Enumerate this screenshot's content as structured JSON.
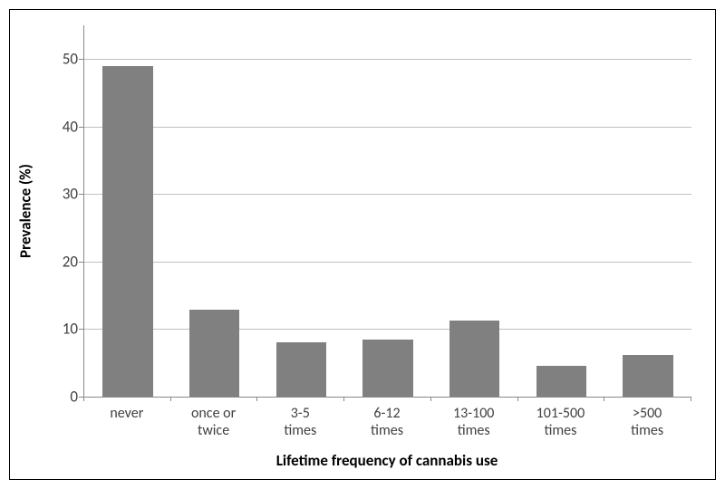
{
  "chart": {
    "type": "bar",
    "categories": [
      "never",
      "once or\ntwice",
      "3-5\ntimes",
      "6-12\ntimes",
      "13-100\ntimes",
      "101-500\ntimes",
      ">500\ntimes"
    ],
    "values": [
      49,
      12.9,
      8.0,
      8.4,
      11.3,
      4.5,
      6.2
    ],
    "bar_color": "#808080",
    "ylabel": "Prevalence (%)",
    "xlabel": "Lifetime frequency of cannabis use",
    "ylim": [
      0,
      55
    ],
    "ytick_step": 10,
    "yticks": [
      0,
      10,
      20,
      30,
      40,
      50
    ],
    "background_color": "#ffffff",
    "grid_color": "#c0c0c0",
    "axis_color": "#888888",
    "bar_width": 0.58,
    "label_fontsize": 17,
    "tick_fontsize": 16,
    "text_color": "#404040"
  }
}
